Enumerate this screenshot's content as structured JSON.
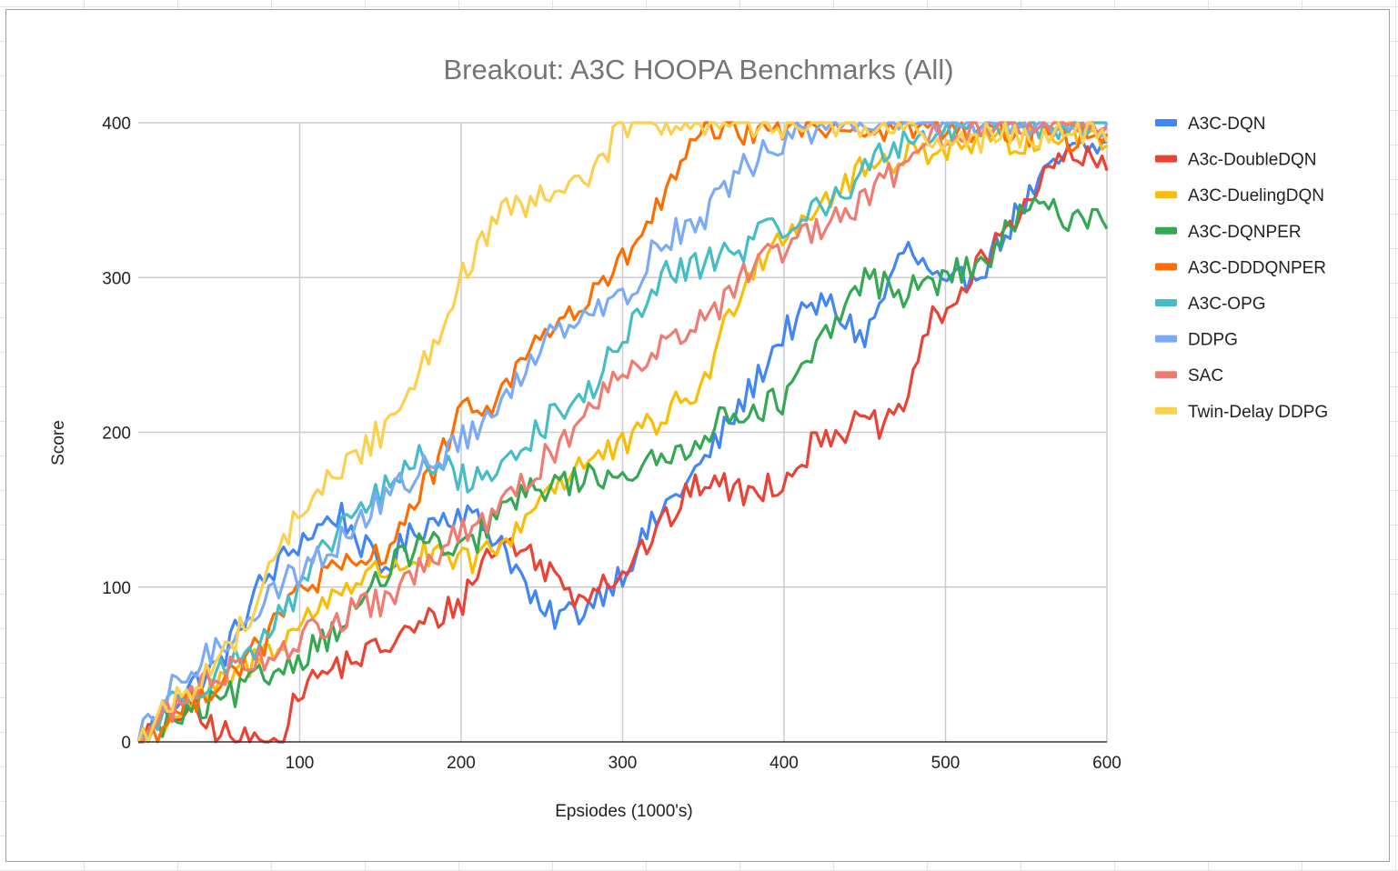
{
  "chart_data": {
    "type": "line",
    "title": "Breakout: A3C HOOPA Benchmarks (All)",
    "xlabel": "Epsiodes (1000's)",
    "ylabel": "Score",
    "xlim": [
      0,
      600
    ],
    "ylim": [
      0,
      400
    ],
    "x_ticks": [
      100,
      200,
      300,
      400,
      500,
      600
    ],
    "y_ticks": [
      0,
      100,
      200,
      300,
      400
    ],
    "grid": true,
    "legend_position": "right",
    "series": [
      {
        "name": "A3C-DQN",
        "color": "#4285f4",
        "x": [
          0,
          25,
          50,
          75,
          100,
          125,
          150,
          175,
          200,
          225,
          250,
          275,
          300,
          325,
          350,
          375,
          400,
          425,
          450,
          475,
          500,
          525,
          550,
          575,
          600
        ],
        "values": [
          0,
          30,
          50,
          100,
          130,
          148,
          110,
          140,
          150,
          130,
          80,
          85,
          110,
          150,
          180,
          220,
          265,
          285,
          260,
          320,
          290,
          310,
          350,
          380,
          385
        ]
      },
      {
        "name": "A3c-DoubleDQN",
        "color": "#ea4335",
        "x": [
          0,
          25,
          50,
          60,
          90,
          100,
          125,
          150,
          175,
          200,
          215,
          230,
          250,
          270,
          300,
          325,
          350,
          375,
          400,
          425,
          450,
          470,
          490,
          510,
          530,
          550,
          575,
          600
        ],
        "values": [
          0,
          20,
          8,
          0,
          0,
          35,
          50,
          60,
          75,
          90,
          120,
          130,
          115,
          95,
          110,
          140,
          170,
          160,
          170,
          200,
          205,
          205,
          270,
          290,
          320,
          350,
          380,
          370
        ]
      },
      {
        "name": "A3C-DuelingDQN",
        "color": "#fbbc04",
        "x": [
          0,
          25,
          50,
          75,
          100,
          125,
          150,
          175,
          200,
          225,
          250,
          275,
          300,
          325,
          350,
          375,
          400,
          425,
          450,
          475,
          500,
          525,
          550,
          575,
          600
        ],
        "values": [
          0,
          20,
          35,
          55,
          75,
          100,
          110,
          120,
          115,
          125,
          160,
          180,
          190,
          210,
          230,
          300,
          330,
          350,
          370,
          380,
          385,
          385,
          390,
          395,
          390
        ]
      },
      {
        "name": "A3C-DQNPER",
        "color": "#34a853",
        "x": [
          0,
          25,
          50,
          75,
          100,
          125,
          150,
          175,
          200,
          225,
          250,
          275,
          300,
          325,
          350,
          375,
          400,
          425,
          450,
          475,
          500,
          525,
          550,
          575,
          600
        ],
        "values": [
          0,
          15,
          25,
          40,
          55,
          75,
          105,
          130,
          120,
          150,
          165,
          170,
          175,
          180,
          200,
          215,
          220,
          260,
          300,
          290,
          300,
          310,
          345,
          340,
          340
        ]
      },
      {
        "name": "A3C-DDDQNPER",
        "color": "#ff6d01",
        "x": [
          0,
          25,
          50,
          75,
          100,
          125,
          150,
          175,
          200,
          225,
          250,
          275,
          300,
          325,
          350,
          375,
          400,
          425,
          450,
          475,
          500,
          525,
          550,
          575,
          600
        ],
        "values": [
          0,
          20,
          40,
          60,
          100,
          110,
          120,
          160,
          210,
          225,
          265,
          280,
          310,
          350,
          395,
          395,
          398,
          400,
          395,
          398,
          398,
          395,
          395,
          390,
          385
        ]
      },
      {
        "name": "A3C-OPG",
        "color": "#46bdc6",
        "x": [
          0,
          25,
          50,
          75,
          100,
          125,
          150,
          175,
          200,
          225,
          250,
          275,
          300,
          325,
          350,
          375,
          400,
          425,
          450,
          475,
          500,
          525,
          550,
          575,
          600
        ],
        "values": [
          0,
          30,
          45,
          65,
          95,
          140,
          160,
          185,
          170,
          175,
          205,
          220,
          260,
          300,
          310,
          320,
          335,
          345,
          370,
          390,
          395,
          398,
          400,
          398,
          400
        ]
      },
      {
        "name": "DDPG",
        "color": "#7baaf7",
        "x": [
          0,
          25,
          50,
          75,
          100,
          125,
          150,
          175,
          200,
          225,
          250,
          275,
          300,
          325,
          350,
          375,
          400,
          425,
          450,
          475,
          500,
          525,
          550,
          575,
          600
        ],
        "values": [
          0,
          40,
          60,
          90,
          110,
          130,
          155,
          175,
          195,
          215,
          260,
          280,
          285,
          325,
          340,
          370,
          390,
          398,
          400,
          400,
          400,
          400,
          400,
          400,
          400
        ]
      },
      {
        "name": "SAC",
        "color": "#f07b72",
        "x": [
          0,
          25,
          50,
          75,
          100,
          125,
          150,
          175,
          200,
          225,
          250,
          275,
          300,
          325,
          350,
          375,
          400,
          425,
          450,
          475,
          500,
          525,
          550,
          575,
          600
        ],
        "values": [
          0,
          25,
          45,
          55,
          65,
          80,
          90,
          110,
          135,
          150,
          180,
          210,
          240,
          260,
          270,
          300,
          320,
          330,
          350,
          375,
          395,
          398,
          400,
          400,
          400
        ]
      },
      {
        "name": "Twin-Delay DDPG",
        "color": "#fcd04f",
        "x": [
          0,
          25,
          50,
          75,
          100,
          125,
          150,
          175,
          200,
          225,
          250,
          275,
          300,
          325,
          350,
          375,
          400,
          425,
          450,
          475,
          500,
          525,
          550,
          575,
          600
        ],
        "values": [
          0,
          30,
          50,
          95,
          150,
          175,
          200,
          240,
          300,
          340,
          350,
          360,
          398,
          400,
          400,
          400,
          400,
          400,
          400,
          398,
          385,
          390,
          395,
          392,
          395
        ]
      }
    ]
  }
}
